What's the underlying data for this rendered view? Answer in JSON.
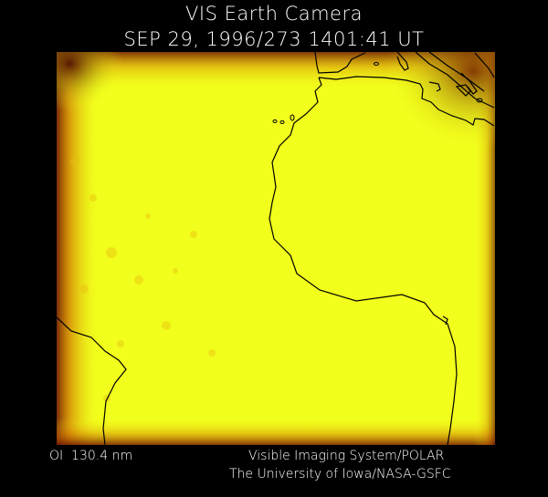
{
  "header": {
    "title": "VIS Earth Camera",
    "timestamp": "SEP 29, 1996/273 1401:41 UT"
  },
  "image": {
    "subject": "Earth UV airglow with coastline overlay (Atlantic, West Africa, South America)",
    "base_color": "#f2ff1c",
    "edge_color": "#6b1500",
    "coastline_color": "#000000"
  },
  "footer": {
    "band": "OI  130.4 nm",
    "instrument": "Visible Imaging System/POLAR",
    "credit": "The University of Iowa/NASA-GSFC"
  }
}
